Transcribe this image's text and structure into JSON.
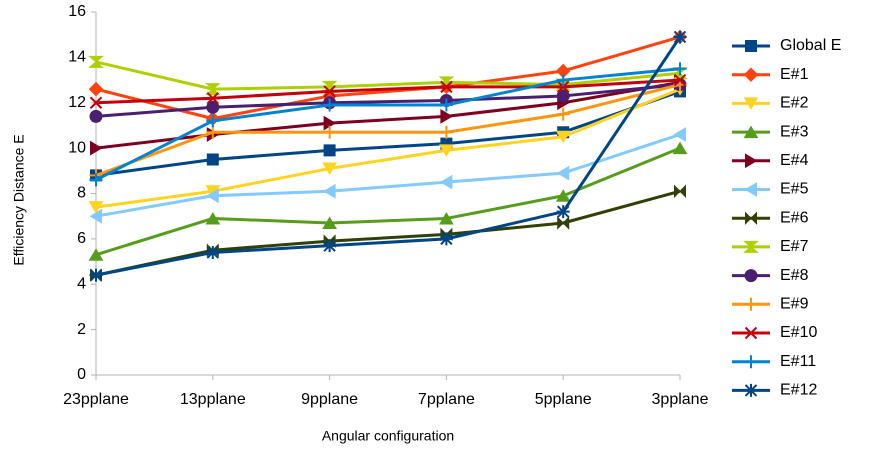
{
  "chart_data": {
    "type": "line",
    "x_label": "Angular configuration",
    "y_label": "Efficiency Distance E",
    "categories": [
      "23pplane",
      "13pplane",
      "9pplane",
      "7pplane",
      "5pplane",
      "3pplane"
    ],
    "ylim": [
      0,
      16
    ],
    "yticks": [
      0,
      2,
      4,
      6,
      8,
      10,
      12,
      14,
      16
    ],
    "grid": false,
    "legend": "right",
    "series": [
      {
        "name": "Global E",
        "color": "#004586",
        "marker": "square",
        "values": [
          8.8,
          9.5,
          9.9,
          10.2,
          10.7,
          12.5
        ]
      },
      {
        "name": "E#1",
        "color": "#ff420e",
        "marker": "diamond",
        "values": [
          12.6,
          11.3,
          12.3,
          12.7,
          13.4,
          14.9
        ]
      },
      {
        "name": "E#2",
        "color": "#ffd320",
        "marker": "triangle-down",
        "values": [
          7.4,
          8.1,
          9.1,
          9.9,
          10.5,
          12.6
        ]
      },
      {
        "name": "E#3",
        "color": "#579d1c",
        "marker": "triangle-up",
        "values": [
          5.3,
          6.9,
          6.7,
          6.9,
          7.9,
          10.0
        ]
      },
      {
        "name": "E#4",
        "color": "#7e0021",
        "marker": "triangle-right",
        "values": [
          10.0,
          10.6,
          11.1,
          11.4,
          12.0,
          12.9
        ]
      },
      {
        "name": "E#5",
        "color": "#83caff",
        "marker": "triangle-left",
        "values": [
          7.0,
          7.9,
          8.1,
          8.5,
          8.9,
          10.6
        ]
      },
      {
        "name": "E#6",
        "color": "#314004",
        "marker": "bowtie",
        "values": [
          4.4,
          5.5,
          5.9,
          6.2,
          6.7,
          8.1
        ]
      },
      {
        "name": "E#7",
        "color": "#aecf00",
        "marker": "hourglass",
        "values": [
          13.8,
          12.6,
          12.7,
          12.9,
          12.8,
          13.3
        ]
      },
      {
        "name": "E#8",
        "color": "#4b1f6f",
        "marker": "circle",
        "values": [
          11.4,
          11.8,
          12.0,
          12.1,
          12.3,
          12.8
        ]
      },
      {
        "name": "E#9",
        "color": "#ff950e",
        "marker": "plus",
        "values": [
          8.8,
          10.7,
          10.7,
          10.7,
          11.5,
          12.8
        ]
      },
      {
        "name": "E#10",
        "color": "#c5000b",
        "marker": "cross",
        "values": [
          12.0,
          12.2,
          12.5,
          12.7,
          12.7,
          13.0
        ]
      },
      {
        "name": "E#11",
        "color": "#0084d1",
        "marker": "plus",
        "values": [
          8.6,
          11.2,
          11.9,
          11.9,
          13.0,
          13.5
        ]
      },
      {
        "name": "E#12",
        "color": "#004586",
        "marker": "asterisk",
        "values": [
          4.4,
          5.4,
          5.7,
          6.0,
          7.2,
          14.9
        ]
      }
    ]
  }
}
